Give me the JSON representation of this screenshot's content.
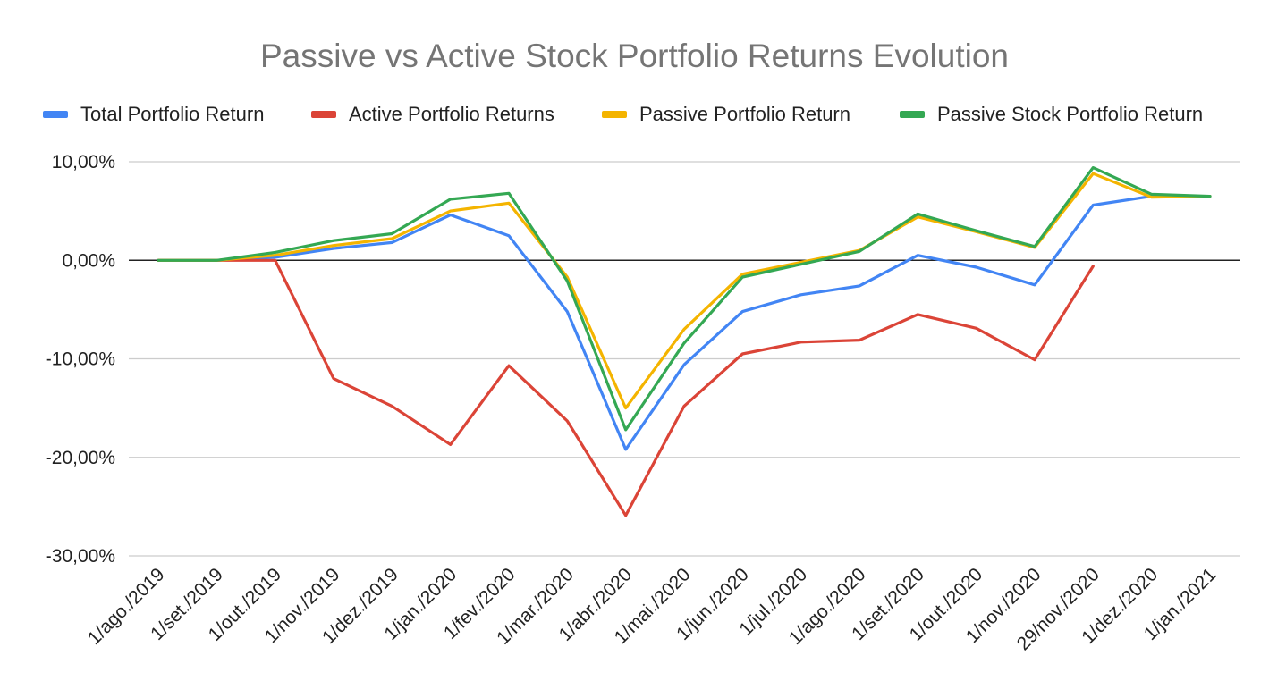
{
  "chart_data": {
    "type": "line",
    "title": "Passive vs Active Stock Portfolio Returns Evolution",
    "xlabel": "",
    "ylabel": "",
    "ylim": [
      -30,
      10
    ],
    "y_ticks": [
      10,
      0,
      -10,
      -20,
      -30
    ],
    "y_tick_labels": [
      "10,00%",
      "0,00%",
      "-10,00%",
      "-20,00%",
      "-30,00%"
    ],
    "grid": true,
    "legend_position": "top",
    "categories": [
      "1/ago./2019",
      "1/set./2019",
      "1/out./2019",
      "1/nov./2019",
      "1/dez./2019",
      "1/jan./2020",
      "1/fev./2020",
      "1/mar./2020",
      "1/abr./2020",
      "1/mai./2020",
      "1/jun./2020",
      "1/jul./2020",
      "1/ago./2020",
      "1/set./2020",
      "1/out./2020",
      "1/nov./2020",
      "29/nov./2020",
      "1/dez./2020",
      "1/jan./2021"
    ],
    "series": [
      {
        "name": "Total Portfolio Return",
        "color": "#4285F4",
        "values": [
          0,
          0,
          0.3,
          1.2,
          1.8,
          4.6,
          2.5,
          -5.2,
          -19.2,
          -10.6,
          -5.2,
          -3.5,
          -2.6,
          0.5,
          -0.7,
          -2.5,
          5.6,
          6.5,
          6.5
        ]
      },
      {
        "name": "Active Portfolio Returns",
        "color": "#DB4437",
        "values": [
          0,
          0,
          0,
          -12.0,
          -14.8,
          -18.7,
          -10.7,
          -16.3,
          -25.9,
          -14.8,
          -9.5,
          -8.3,
          -8.1,
          -5.5,
          -6.9,
          -10.1,
          -0.6,
          null,
          null
        ]
      },
      {
        "name": "Passive Portfolio Return",
        "color": "#F4B400",
        "values": [
          0,
          0,
          0.5,
          1.5,
          2.2,
          5.0,
          5.8,
          -1.7,
          -15.0,
          -7.0,
          -1.4,
          -0.2,
          1.0,
          4.4,
          2.9,
          1.3,
          8.8,
          6.4,
          6.5
        ]
      },
      {
        "name": "Passive Stock Portfolio Return",
        "color": "#34A853",
        "values": [
          0,
          0,
          0.8,
          2.0,
          2.7,
          6.2,
          6.8,
          -2.1,
          -17.2,
          -8.4,
          -1.7,
          -0.4,
          0.9,
          4.7,
          3.0,
          1.4,
          9.4,
          6.7,
          6.5
        ]
      }
    ]
  }
}
